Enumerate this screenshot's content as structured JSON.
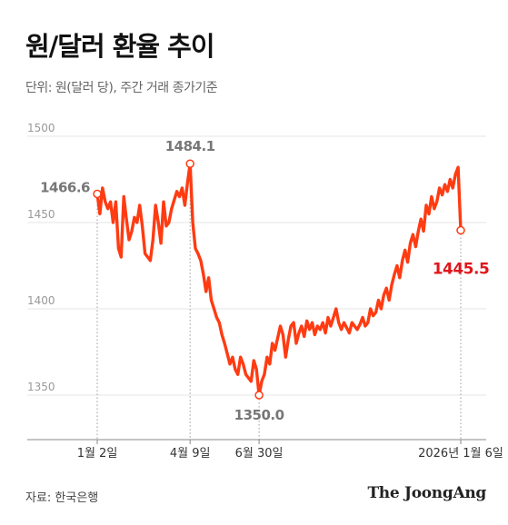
{
  "header": {
    "title": "원/달러 환율 추이",
    "subtitle": "단위: 원(달러 당), 주간 거래 종가기준"
  },
  "footer": {
    "source": "자료: 한국은행",
    "brand": "The JoongAng"
  },
  "colors": {
    "line": "#FF3B12",
    "last_label": "#E0161B",
    "label": "#777777",
    "grid": "#E6E6E6",
    "axis": "#888888"
  },
  "chart_data": {
    "type": "line",
    "title": "원/달러 환율 추이",
    "subtitle": "단위: 원(달러 당), 주간 거래 종가기준",
    "ylim": [
      1325,
      1500
    ],
    "y_ticks": [
      1350,
      1400,
      1450,
      1500
    ],
    "y_tick_labels": [
      "1350",
      "1400",
      "1450",
      "1500"
    ],
    "x_ticks": [
      {
        "index": 0,
        "label": "1월 2일"
      },
      {
        "index": 35,
        "label": "4월 9일"
      },
      {
        "index": 61,
        "label": "6월 30일"
      },
      {
        "index": 137,
        "label": "2026년 1월 6일"
      }
    ],
    "annotations": [
      {
        "index": 0,
        "value": 1466.6,
        "label": "1466.6"
      },
      {
        "index": 35,
        "value": 1484.1,
        "label": "1484.1"
      },
      {
        "index": 61,
        "value": 1350.0,
        "label": "1350.0"
      },
      {
        "index": 137,
        "value": 1445.5,
        "label": "1445.5"
      }
    ],
    "series": [
      {
        "values": [
          1466.6,
          1455,
          1470,
          1462,
          1458,
          1462,
          1450,
          1462,
          1435,
          1430,
          1465,
          1452,
          1440,
          1445,
          1453,
          1450,
          1460,
          1448,
          1432,
          1430,
          1428,
          1440,
          1460,
          1450,
          1438,
          1462,
          1448,
          1450,
          1458,
          1463,
          1468,
          1465,
          1470,
          1460,
          1473,
          1484.1,
          1450,
          1435,
          1432,
          1428,
          1420,
          1410,
          1418,
          1405,
          1400,
          1395,
          1392,
          1385,
          1380,
          1374,
          1368,
          1372,
          1365,
          1362,
          1372,
          1368,
          1362,
          1360,
          1358,
          1370,
          1365,
          1350.0,
          1358,
          1362,
          1372,
          1368,
          1380,
          1376,
          1383,
          1390,
          1385,
          1372,
          1382,
          1390,
          1392,
          1380,
          1386,
          1390,
          1384,
          1393,
          1388,
          1392,
          1385,
          1390,
          1388,
          1392,
          1386,
          1395,
          1390,
          1395,
          1400,
          1392,
          1388,
          1392,
          1389,
          1386,
          1392,
          1390,
          1388,
          1391,
          1395,
          1390,
          1392,
          1400,
          1396,
          1398,
          1405,
          1400,
          1408,
          1412,
          1405,
          1414,
          1420,
          1425,
          1418,
          1428,
          1434,
          1427,
          1438,
          1443,
          1436,
          1445,
          1452,
          1445,
          1460,
          1455,
          1465,
          1458,
          1462,
          1470,
          1466,
          1472,
          1468,
          1475,
          1470,
          1478,
          1482,
          1445.5
        ]
      }
    ]
  }
}
